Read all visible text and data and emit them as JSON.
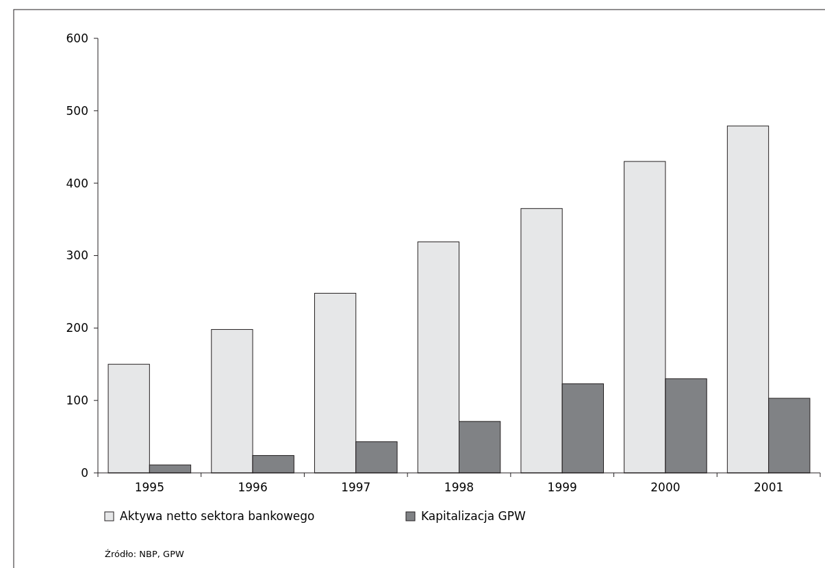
{
  "chart_data": {
    "type": "bar",
    "categories": [
      "1995",
      "1996",
      "1997",
      "1998",
      "1999",
      "2000",
      "2001"
    ],
    "series": [
      {
        "name": "Aktywa netto sektora bankowego",
        "color": "#e6e7e8",
        "values": [
          150,
          198,
          248,
          319,
          365,
          430,
          479
        ]
      },
      {
        "name": "Kapitalizacja GPW",
        "color": "#808285",
        "values": [
          11,
          24,
          43,
          71,
          123,
          130,
          103
        ]
      }
    ],
    "ylim": [
      0,
      600
    ],
    "yticks": [
      0,
      100,
      200,
      300,
      400,
      500,
      600
    ],
    "grid": false,
    "legend": "bottom",
    "annotations": [
      "Źródło: NBP, GPW"
    ]
  }
}
